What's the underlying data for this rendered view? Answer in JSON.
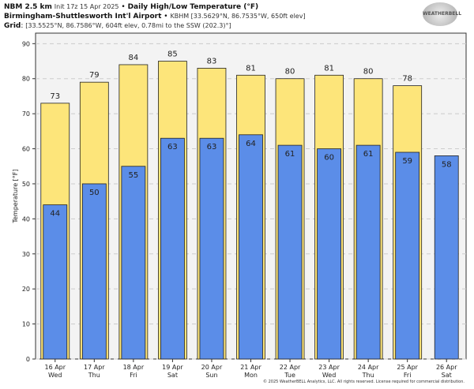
{
  "header": {
    "model": "NBM 2.5 km",
    "init": "Init 17z 15 Apr 2025",
    "sep": "•",
    "title": "Daily High/Low Temperature (°F)",
    "station": "Birmingham-Shuttlesworth Int'l Airport",
    "station_info": "KBHM [33.5629°N, 86.7535°W, 650ft elev]",
    "grid_label": "Grid",
    "grid_info": "[33.5525°N, 86.7586°W, 604ft elev, 0.78mi to the SSW (202.3)°]"
  },
  "logo": "WeatherBELL",
  "copyright": "© 2025 WeatherBELL Analytics, LLC. All rights reserved. License required for commercial distribution.",
  "chart_data": {
    "type": "bar",
    "title": "Daily High/Low Temperature (°F)",
    "ylabel": "Temperature [°F]",
    "xlabel": "",
    "ylim": [
      0,
      93
    ],
    "yticks": [
      0,
      10,
      20,
      30,
      40,
      50,
      60,
      70,
      80,
      90
    ],
    "grid": true,
    "categories": [
      "16 Apr",
      "17 Apr",
      "18 Apr",
      "19 Apr",
      "20 Apr",
      "21 Apr",
      "22 Apr",
      "23 Apr",
      "24 Apr",
      "25 Apr",
      "26 Apr"
    ],
    "days": [
      "Wed",
      "Thu",
      "Fri",
      "Sat",
      "Sun",
      "Mon",
      "Tue",
      "Wed",
      "Thu",
      "Fri",
      "Sat"
    ],
    "series": [
      {
        "name": "High",
        "color": "#fde57a",
        "values": [
          73,
          79,
          84,
          85,
          83,
          81,
          80,
          81,
          80,
          78,
          null
        ]
      },
      {
        "name": "Low",
        "color": "#5b8de8",
        "values": [
          44,
          50,
          55,
          63,
          63,
          64,
          61,
          60,
          61,
          59,
          58
        ]
      }
    ]
  }
}
